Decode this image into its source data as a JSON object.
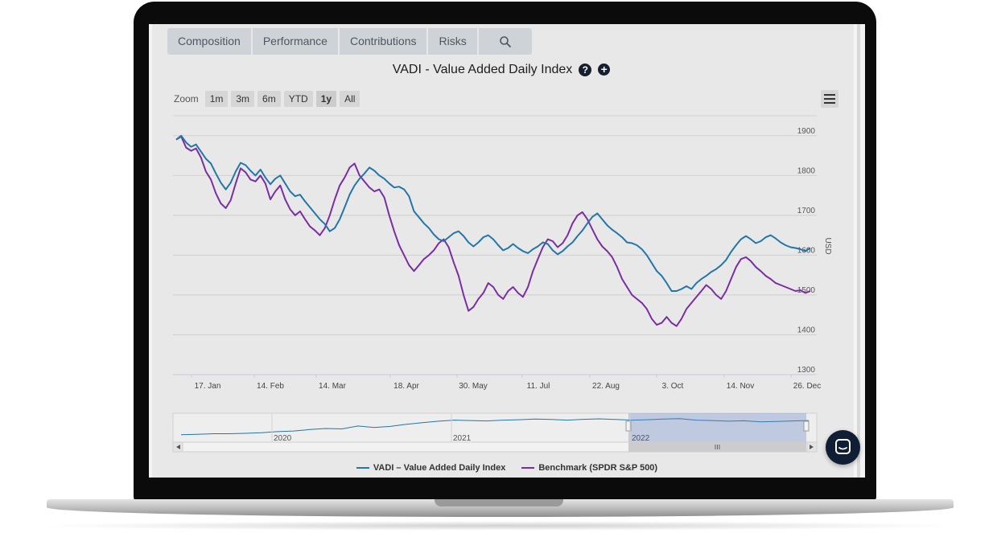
{
  "tabs": [
    {
      "label": "Composition"
    },
    {
      "label": "Performance"
    },
    {
      "label": "Contributions"
    },
    {
      "label": "Risks"
    }
  ],
  "search_icon": "search-icon",
  "help_icon": "question-circle-icon",
  "help_label": "?",
  "add_icon": "plus-circle-icon",
  "add_label": "+",
  "zoom": {
    "label": "Zoom",
    "buttons": [
      "1m",
      "3m",
      "6m",
      "YTD",
      "1y",
      "All"
    ],
    "selected": "1y"
  },
  "menu_icon": "hamburger-menu-icon",
  "chat_icon": "chat-bubble-icon",
  "colors": {
    "vadi": "#2376a8",
    "benchmark": "#7b2ea3"
  },
  "chart_data": {
    "type": "line",
    "title": "VADI - Value Added Daily Index",
    "ylabel": "USD",
    "ylim": [
      1300,
      1950
    ],
    "yticks": [
      1300,
      1400,
      1500,
      1600,
      1700,
      1800,
      1900
    ],
    "ytick_labels": [
      "1300",
      "1400",
      "1500",
      "1600",
      "1700",
      "1800",
      "1900"
    ],
    "xticks": [
      "17. Jan",
      "14. Feb",
      "14. Mar",
      "18. Apr",
      "30. May",
      "11. Jul",
      "22. Aug",
      "3. Oct",
      "14. Nov",
      "26. Dec"
    ],
    "grid": true,
    "legend_position": "bottom-center",
    "series": [
      {
        "name": "VADI – Value Added Daily Index",
        "color": "#2376a8",
        "values": [
          1890,
          1900,
          1883,
          1872,
          1878,
          1860,
          1842,
          1830,
          1805,
          1782,
          1765,
          1782,
          1810,
          1832,
          1826,
          1812,
          1800,
          1815,
          1795,
          1778,
          1792,
          1800,
          1780,
          1760,
          1748,
          1752,
          1735,
          1720,
          1705,
          1690,
          1678,
          1660,
          1668,
          1690,
          1720,
          1752,
          1775,
          1792,
          1805,
          1820,
          1812,
          1800,
          1792,
          1780,
          1770,
          1772,
          1765,
          1748,
          1710,
          1695,
          1680,
          1668,
          1652,
          1640,
          1635,
          1645,
          1655,
          1660,
          1648,
          1632,
          1622,
          1632,
          1645,
          1650,
          1640,
          1625,
          1612,
          1618,
          1628,
          1618,
          1610,
          1605,
          1615,
          1622,
          1632,
          1628,
          1612,
          1602,
          1610,
          1622,
          1632,
          1648,
          1662,
          1680,
          1696,
          1705,
          1690,
          1675,
          1664,
          1655,
          1645,
          1632,
          1630,
          1625,
          1615,
          1600,
          1580,
          1560,
          1548,
          1530,
          1510,
          1510,
          1515,
          1522,
          1515,
          1530,
          1540,
          1548,
          1558,
          1565,
          1575,
          1588,
          1608,
          1625,
          1640,
          1648,
          1640,
          1630,
          1635,
          1645,
          1650,
          1642,
          1632,
          1625,
          1620,
          1618,
          1615,
          1610,
          1618
        ],
        "desc": "weekly-ish closing values, 17. Jan – 26. Dec"
      },
      {
        "name": "Benchmark (SPDR S&P 500)",
        "color": "#7b2ea3",
        "values": [
          1890,
          1898,
          1870,
          1862,
          1868,
          1845,
          1810,
          1790,
          1755,
          1730,
          1718,
          1738,
          1780,
          1818,
          1808,
          1790,
          1785,
          1800,
          1780,
          1740,
          1760,
          1775,
          1740,
          1715,
          1700,
          1710,
          1690,
          1672,
          1662,
          1650,
          1668,
          1700,
          1740,
          1775,
          1795,
          1820,
          1830,
          1800,
          1785,
          1770,
          1760,
          1765,
          1745,
          1700,
          1660,
          1625,
          1600,
          1575,
          1560,
          1575,
          1590,
          1600,
          1612,
          1630,
          1640,
          1620,
          1582,
          1548,
          1500,
          1460,
          1470,
          1490,
          1505,
          1530,
          1520,
          1500,
          1490,
          1510,
          1520,
          1505,
          1495,
          1520,
          1560,
          1590,
          1620,
          1640,
          1635,
          1620,
          1630,
          1650,
          1680,
          1700,
          1708,
          1690,
          1665,
          1640,
          1622,
          1610,
          1595,
          1570,
          1540,
          1520,
          1500,
          1490,
          1480,
          1465,
          1440,
          1425,
          1430,
          1445,
          1430,
          1422,
          1440,
          1465,
          1480,
          1495,
          1510,
          1525,
          1515,
          1500,
          1490,
          1510,
          1540,
          1570,
          1590,
          1595,
          1585,
          1570,
          1560,
          1548,
          1540,
          1530,
          1525,
          1520,
          1515,
          1510,
          1512,
          1505,
          1510
        ]
      }
    ]
  },
  "navigator": {
    "year_labels": [
      "2020",
      "2021",
      "2022"
    ]
  },
  "legend": [
    {
      "label": "VADI – Value Added Daily Index"
    },
    {
      "label": "Benchmark (SPDR S&P 500)"
    }
  ]
}
